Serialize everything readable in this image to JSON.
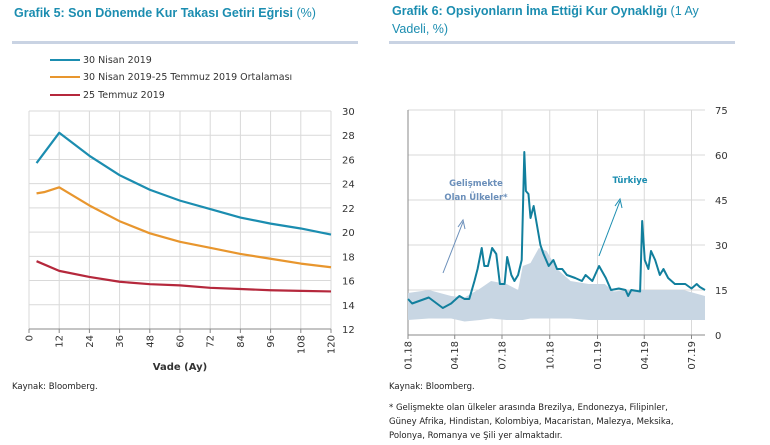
{
  "chart_data": [
    {
      "type": "line",
      "title": "Grafik 5: Son Dönemde Kur Takası Getiri Eğrisi",
      "title_unit": "(%)",
      "xlabel": "Vade (Ay)",
      "ylabel": "",
      "xlim": [
        0,
        120
      ],
      "ylim": [
        12,
        30
      ],
      "x_ticks": [
        "0",
        "12",
        "24",
        "36",
        "48",
        "60",
        "72",
        "84",
        "96",
        "108",
        "120"
      ],
      "y_ticks": [
        "12",
        "14",
        "16",
        "18",
        "20",
        "22",
        "24",
        "26",
        "28",
        "30"
      ],
      "grid": true,
      "legend_placement": "top-left",
      "series": [
        {
          "name": "30 Nisan 2019",
          "color": "#1b8db0",
          "x": [
            3,
            12,
            24,
            36,
            48,
            60,
            72,
            84,
            96,
            108,
            120
          ],
          "y": [
            25.7,
            28.2,
            26.3,
            24.7,
            23.5,
            22.6,
            21.9,
            21.2,
            20.7,
            20.3,
            19.8
          ]
        },
        {
          "name": "30 Nisan 2019-25 Temmuz 2019 Ortalaması",
          "color": "#e8962e",
          "x": [
            3,
            6,
            12,
            24,
            36,
            48,
            60,
            72,
            84,
            96,
            108,
            120
          ],
          "y": [
            23.2,
            23.3,
            23.7,
            22.2,
            20.9,
            19.9,
            19.2,
            18.7,
            18.2,
            17.8,
            17.4,
            17.1
          ]
        },
        {
          "name": "25 Temmuz 2019",
          "color": "#b5283c",
          "x": [
            3,
            12,
            24,
            36,
            48,
            60,
            72,
            84,
            96,
            108,
            120
          ],
          "y": [
            17.6,
            16.8,
            16.3,
            15.9,
            15.7,
            15.6,
            15.4,
            15.3,
            15.2,
            15.15,
            15.1
          ]
        }
      ],
      "source": "Kaynak: Bloomberg."
    },
    {
      "type": "line",
      "title": "Grafik 6: Opsiyonların İma Ettiği Kur Oynaklığı",
      "title_unit_line1": "(1 Ay",
      "title_unit_line2": "Vadeli, %)",
      "xlim": [
        "2018-01-01",
        "2019-07-27"
      ],
      "ylim": [
        0,
        75
      ],
      "x_ticks": [
        {
          "date": "2018-01-01",
          "label": "01.18"
        },
        {
          "date": "2018-04-01",
          "label": "04.18"
        },
        {
          "date": "2018-07-01",
          "label": "07.18"
        },
        {
          "date": "2018-10-01",
          "label": "10.18"
        },
        {
          "date": "2019-01-01",
          "label": "01.19"
        },
        {
          "date": "2019-04-01",
          "label": "04.19"
        },
        {
          "date": "2019-07-01",
          "label": "07.19"
        }
      ],
      "y_ticks": [
        "0",
        "15",
        "30",
        "45",
        "60",
        "75"
      ],
      "grid": true,
      "annotations": [
        {
          "lines": [
            "Gelişmekte",
            "Olan Ülkeler*"
          ],
          "color": "#6b8fba"
        },
        {
          "lines": [
            "Türkiye"
          ],
          "color": "#1b8db0"
        }
      ],
      "band": {
        "name": "Gelişmekte Olan Ülkeler*",
        "color": "#c8d6e3",
        "dates": [
          "2018-01-01",
          "2018-02-10",
          "2018-03-25",
          "2018-04-20",
          "2018-05-20",
          "2018-06-10",
          "2018-07-10",
          "2018-08-01",
          "2018-08-10",
          "2018-08-25",
          "2018-09-10",
          "2018-09-25",
          "2018-10-15",
          "2018-11-10",
          "2018-12-15",
          "2019-01-15",
          "2019-02-01",
          "2019-03-01",
          "2019-04-01",
          "2019-05-15",
          "2019-06-15",
          "2019-07-27"
        ],
        "low": [
          5,
          5.5,
          5.5,
          4.5,
          5,
          5.5,
          5,
          5,
          5,
          5.5,
          5.5,
          5.5,
          5.5,
          5.5,
          5,
          5,
          5,
          5,
          5,
          5,
          5,
          5
        ],
        "high": [
          14,
          15,
          13,
          12.5,
          15.5,
          18,
          17,
          15,
          23,
          24,
          29,
          28,
          22,
          18,
          17,
          17,
          14.5,
          15,
          15,
          15,
          15,
          13
        ]
      },
      "series": [
        {
          "name": "Türkiye",
          "color": "#117f9d",
          "dates": [
            "2018-01-01",
            "2018-01-09",
            "2018-02-10",
            "2018-03-09",
            "2018-03-25",
            "2018-04-10",
            "2018-04-20",
            "2018-04-29",
            "2018-05-09",
            "2018-05-15",
            "2018-05-23",
            "2018-05-28",
            "2018-06-04",
            "2018-06-12",
            "2018-06-20",
            "2018-06-27",
            "2018-07-06",
            "2018-07-11",
            "2018-07-19",
            "2018-07-25",
            "2018-08-01",
            "2018-08-08",
            "2018-08-13",
            "2018-08-16",
            "2018-08-21",
            "2018-08-25",
            "2018-08-31",
            "2018-09-06",
            "2018-09-13",
            "2018-09-19",
            "2018-09-29",
            "2018-10-08",
            "2018-10-15",
            "2018-10-25",
            "2018-11-03",
            "2018-11-19",
            "2018-12-02",
            "2018-12-09",
            "2018-12-22",
            "2019-01-04",
            "2019-01-17",
            "2019-01-27",
            "2019-02-11",
            "2019-02-24",
            "2019-03-01",
            "2019-03-07",
            "2019-03-24",
            "2019-03-28",
            "2019-04-02",
            "2019-04-09",
            "2019-04-14",
            "2019-04-22",
            "2019-05-01",
            "2019-05-08",
            "2019-05-17",
            "2019-05-30",
            "2019-06-19",
            "2019-07-01",
            "2019-07-11",
            "2019-07-17",
            "2019-07-27"
          ],
          "values": [
            12,
            10.5,
            12.5,
            9,
            10.5,
            13,
            12,
            12,
            18,
            22,
            29,
            23,
            23,
            29,
            27,
            17,
            17,
            26,
            20,
            18,
            20,
            25,
            61,
            48,
            47,
            39,
            43,
            37,
            30,
            27,
            23,
            25,
            22,
            22,
            20,
            19,
            18,
            20,
            18,
            23,
            19,
            15,
            15.5,
            15,
            13,
            15,
            14.5,
            38,
            25,
            22,
            28,
            25,
            20,
            22,
            19,
            17,
            17,
            15.5,
            17,
            16,
            15
          ]
        }
      ],
      "source": "Kaynak: Bloomberg.",
      "footnote": [
        "* Gelişmekte olan ülkeler arasında Brezilya, Endonezya, Filipinler,",
        "Güney Afrika, Hindistan, Kolombiya, Macaristan, Malezya, Meksika,",
        "Polonya, Romanya ve Şili yer almaktadır."
      ]
    }
  ]
}
